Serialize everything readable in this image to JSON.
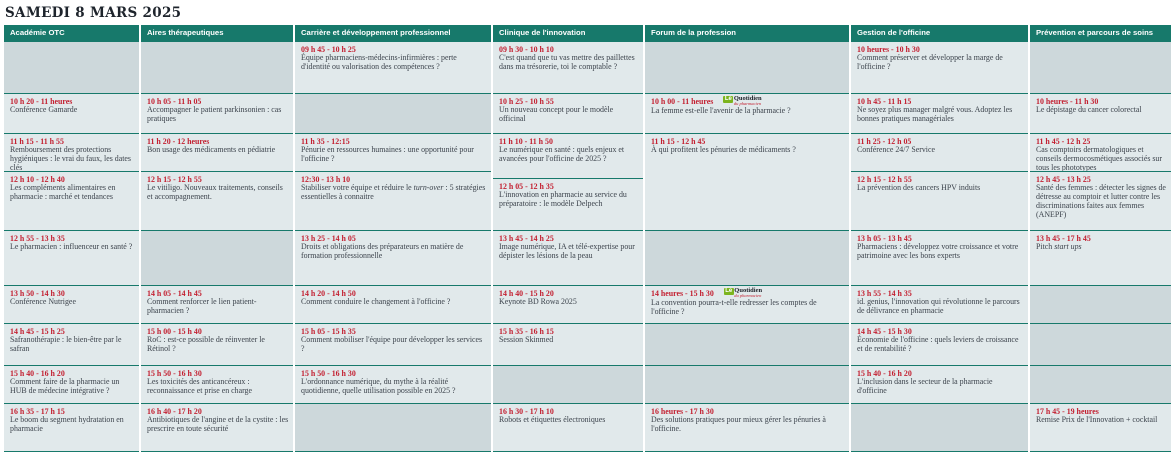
{
  "page": {
    "title": "SAMEDI 8 MARS 2025"
  },
  "colors": {
    "header_teal": "#17796b",
    "time_red": "#c32031",
    "cell_bg": "#e1e9eb",
    "empty_cell_bg": "#cdd8db",
    "logo_green": "#7cb41e"
  },
  "quotidien_logo": {
    "le": "Le",
    "name": "Quotidien",
    "sub": "du pharmacien"
  },
  "columns": [
    {
      "header": "Académie OTC",
      "cells": [
        {
          "h": 52,
          "empty": true
        },
        {
          "h": 40,
          "time": "10 h 20 - 11 heures",
          "title": "Conférence Gamarde"
        },
        {
          "h": 38,
          "time": "11 h 15 - 11 h 55",
          "title": "Remboursement des protections hygiéniques : le vrai du faux, les dates clés"
        },
        {
          "h": 59,
          "time": "12 h 10 - 12 h 40",
          "title": "Les compléments alimentaires en pharmacie : marché et tendances"
        },
        {
          "h": 55,
          "time": "12 h 55 - 13 h 35",
          "title": "Le pharmacien : influenceur en santé ?"
        },
        {
          "h": 38,
          "time": "13 h 50 - 14 h 30",
          "title": "Conférence Nutrigee"
        },
        {
          "h": 42,
          "time": "14 h 45 - 15 h 25",
          "title": "Safranothérapie : le bien-être par le safran"
        },
        {
          "h": 38,
          "time": "15 h 40 - 16 h 20",
          "title": "Comment faire de la pharmacie un HUB de médecine intégrative ?"
        },
        {
          "h": 49,
          "time": "16 h 35 - 17 h 15",
          "title": "Le boom du segment hydratation en pharmacie"
        }
      ]
    },
    {
      "header": "Aires thérapeutiques",
      "cells": [
        {
          "h": 52,
          "empty": true
        },
        {
          "h": 40,
          "time": "10 h 05 - 11 h 05",
          "title": "Accompagner le patient parkinsonien : cas pratiques"
        },
        {
          "h": 38,
          "time": "11 h 20 - 12 heures",
          "title": "Bon usage des médicaments en pédiatrie"
        },
        {
          "h": 59,
          "time": "12 h 15 - 12 h 55",
          "title": "Le vitiligo. Nouveaux traitements, conseils et accompagnement."
        },
        {
          "h": 55,
          "empty": true
        },
        {
          "h": 38,
          "time": "14 h 05 - 14 h 45",
          "title": "Comment renforcer le lien patient-pharmacien ?"
        },
        {
          "h": 42,
          "time": "15 h 00 - 15 h 40",
          "title": "RoC : est-ce possible de réinventer le Rétinol ?"
        },
        {
          "h": 38,
          "time": "15 h 50 - 16 h 30",
          "title": "Les toxicités des anticancéreux : reconnaissance et prise en charge"
        },
        {
          "h": 49,
          "time": "16 h 40 - 17 h 20",
          "title": "Antibiotiques de l'angine et de la cystite : les prescrire en toute sécurité"
        }
      ]
    },
    {
      "header": "Carrière et développement professionnel",
      "cells": [
        {
          "h": 52,
          "time": "09 h 45 - 10 h 25",
          "title": "Équipe pharmaciens-médecins-infirmières : perte d'identité ou valorisation des compétences ?"
        },
        {
          "h": 40,
          "empty": true
        },
        {
          "h": 38,
          "time": "11 h 35 - 12:15",
          "title": "Pénurie en ressources humaines : une opportunité pour l'officine ?"
        },
        {
          "h": 59,
          "time": "12:30 - 13 h 10",
          "title": "Stabiliser votre équipe et réduire le *turn-over* : 5 stratégies essentielles à connaitre"
        },
        {
          "h": 55,
          "time": "13 h 25 - 14 h 05",
          "title": "Droits et obligations des préparateurs en matière de formation professionnelle"
        },
        {
          "h": 38,
          "time": "14 h 20 - 14 h 50",
          "title": "Comment conduire le changement à l'officine ?"
        },
        {
          "h": 42,
          "time": "15 h 05 - 15 h 35",
          "title": "Comment mobiliser l'équipe pour développer les services ?"
        },
        {
          "h": 38,
          "time": "15 h 50 - 16 h 30",
          "title": "L'ordonnance numérique, du mythe à la réalité quotidienne, quelle utilisation possible en 2025 ?"
        },
        {
          "h": 49,
          "empty": true
        }
      ]
    },
    {
      "header": "Clinique de l'innovation",
      "cells": [
        {
          "h": 52,
          "time": "09 h 30 - 10 h 10",
          "title": "C'est quand que tu vas mettre des paillettes dans ma trésorerie, toi le comptable ?"
        },
        {
          "h": 40,
          "time": "10 h 25 - 10 h 55",
          "title": "Un nouveau concept pour le modèle officinal"
        },
        {
          "h": 45,
          "time": "11 h 10 - 11 h 50",
          "title": "Le numérique en santé : quels enjeux et avancées pour l'officine de 2025 ?"
        },
        {
          "h": 52,
          "time": "12 h 05 - 12 h 35",
          "title": "L'innovation en pharmacie au service du préparatoire : le modèle Delpech"
        },
        {
          "h": 55,
          "time": "13 h 45 - 14 h 25",
          "title": "Image numérique, IA et télé-expertise pour dépister les lésions de la peau"
        },
        {
          "h": 38,
          "time": "14 h 40 - 15 h 20",
          "title": "Keynote BD Rowa 2025"
        },
        {
          "h": 42,
          "time": "15 h 35 - 16 h 15",
          "title": "Session Skinmed"
        },
        {
          "h": 38,
          "empty": true
        },
        {
          "h": 49,
          "time": "16 h 30 - 17 h 10",
          "title": "Robots et étiquettes électroniques"
        }
      ]
    },
    {
      "header": "Forum de la profession",
      "cells": [
        {
          "h": 52,
          "empty": true
        },
        {
          "h": 40,
          "time": "10 h 00 - 11 heures",
          "logo": true,
          "title": "La femme est-elle l'avenir de la pharmacie ?"
        },
        {
          "h": 97,
          "time": "11 h 15 - 12 h 45",
          "title": "À qui profitent les pénuries de médicaments ?"
        },
        {
          "h": 55,
          "empty": true
        },
        {
          "h": 38,
          "time": "14 heures - 15 h 30",
          "logo": true,
          "title": "La convention pourra-t-elle redresser les comptes de l'officine ?"
        },
        {
          "h": 42,
          "empty": true
        },
        {
          "h": 38,
          "empty": true
        },
        {
          "h": 49,
          "time": "16 heures - 17 h 30",
          "title": "Des solutions pratiques pour mieux gérer les pénuries à l'officine."
        }
      ]
    },
    {
      "header": "Gestion de l'officine",
      "cells": [
        {
          "h": 52,
          "time": "10 heures - 10 h 30",
          "title": "Comment préserver et développer la marge de l'officine ?"
        },
        {
          "h": 40,
          "time": "10 h 45 - 11 h 15",
          "title": "Ne soyez plus manager malgré vous. Adoptez les bonnes pratiques managériales"
        },
        {
          "h": 38,
          "time": "11 h 25 - 12 h 05",
          "title": "Conférence 24/7 Service"
        },
        {
          "h": 59,
          "time": "12 h 15 - 12 h 55",
          "title": "La prévention des cancers HPV induits"
        },
        {
          "h": 55,
          "time": "13 h 05 - 13 h 45",
          "title": "Pharmaciens : développez votre croissance et votre patrimoine avec les bons experts"
        },
        {
          "h": 38,
          "time": "13 h 55 - 14 h 35",
          "title": "id. genius, l'innovation qui révolutionne le parcours de délivrance en pharmacie"
        },
        {
          "h": 42,
          "time": "14 h 45 - 15 h 30",
          "title": "Économie de l'officine : quels leviers de croissance et de rentabilité ?"
        },
        {
          "h": 38,
          "time": "15 h 40 - 16 h 20",
          "title": "L'inclusion dans le secteur de la pharmacie d'officine"
        },
        {
          "h": 49,
          "empty": true
        }
      ]
    },
    {
      "header": "Prévention et parcours de soins",
      "cells": [
        {
          "h": 52,
          "empty": true
        },
        {
          "h": 40,
          "time": "10 heures - 11 h 30",
          "title": "Le dépistage du cancer colorectal"
        },
        {
          "h": 38,
          "time": "11 h 45 - 12 h 25",
          "title": "Cas comptoirs dermatologiques et conseils dermocosmétiques associés sur tous les phototypes"
        },
        {
          "h": 59,
          "time": "12 h 45 - 13 h 25",
          "title": "Santé des femmes : détecter les signes de détresse au comptoir et lutter contre les discriminations faites aux femmes (ANEPF)"
        },
        {
          "h": 55,
          "time": "13 h 45 - 17 h 45",
          "title": "Pitch *start ups*"
        },
        {
          "h": 38,
          "empty": true
        },
        {
          "h": 42,
          "empty": true
        },
        {
          "h": 38,
          "empty": true
        },
        {
          "h": 49,
          "time": "17 h 45 - 19 heures",
          "title": "Remise Prix de l'Innovation + cocktail"
        }
      ]
    }
  ]
}
